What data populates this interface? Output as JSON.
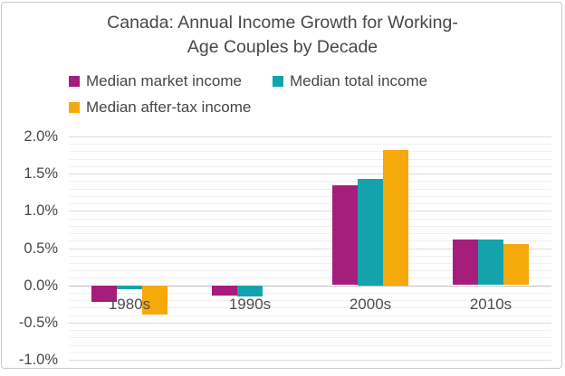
{
  "frame": {
    "background": "#ffffff",
    "border_color": "#c9c9c9"
  },
  "chart_data": {
    "type": "bar",
    "title": "Canada: Annual Income Growth for Working-Age Couples by Decade",
    "title_lines": [
      "Canada: Annual Income Growth for Working-",
      "Age Couples by Decade"
    ],
    "categories": [
      "1980s",
      "1990s",
      "2000s",
      "2010s"
    ],
    "series": [
      {
        "name": "Median market income",
        "color": "#A51E7C",
        "values": [
          -0.22,
          -0.13,
          1.34,
          0.61
        ]
      },
      {
        "name": "Median total income",
        "color": "#14A3AD",
        "values": [
          -0.05,
          -0.14,
          1.43,
          0.61
        ]
      },
      {
        "name": "Median after-tax income",
        "color": "#F5A90B",
        "values": [
          -0.39,
          0.0,
          1.82,
          0.55
        ]
      }
    ],
    "unit": "percent",
    "ylim": [
      -1.0,
      2.0
    ],
    "y_axis": {
      "major_step": 0.5,
      "minor_step": 0.1,
      "ticks": [
        {
          "label": "2.0%",
          "value": 2.0
        },
        {
          "label": "1.5%",
          "value": 1.5
        },
        {
          "label": "1.0%",
          "value": 1.0
        },
        {
          "label": "0.5%",
          "value": 0.5
        },
        {
          "label": "0.0%",
          "value": 0.0
        },
        {
          "label": "-0.5%",
          "value": -0.5
        },
        {
          "label": "-1.0%",
          "value": -1.0
        }
      ]
    },
    "grid": true,
    "legend_position": "top-left"
  },
  "colors": {
    "grid_minor": "#F0F0F0",
    "grid_major": "#DBDBDB",
    "axis_zero": "#BFBFBF",
    "title_text": "#484848",
    "legend_text": "#464646",
    "tick_text": "#48484A",
    "category_text": "#4E4E50"
  }
}
